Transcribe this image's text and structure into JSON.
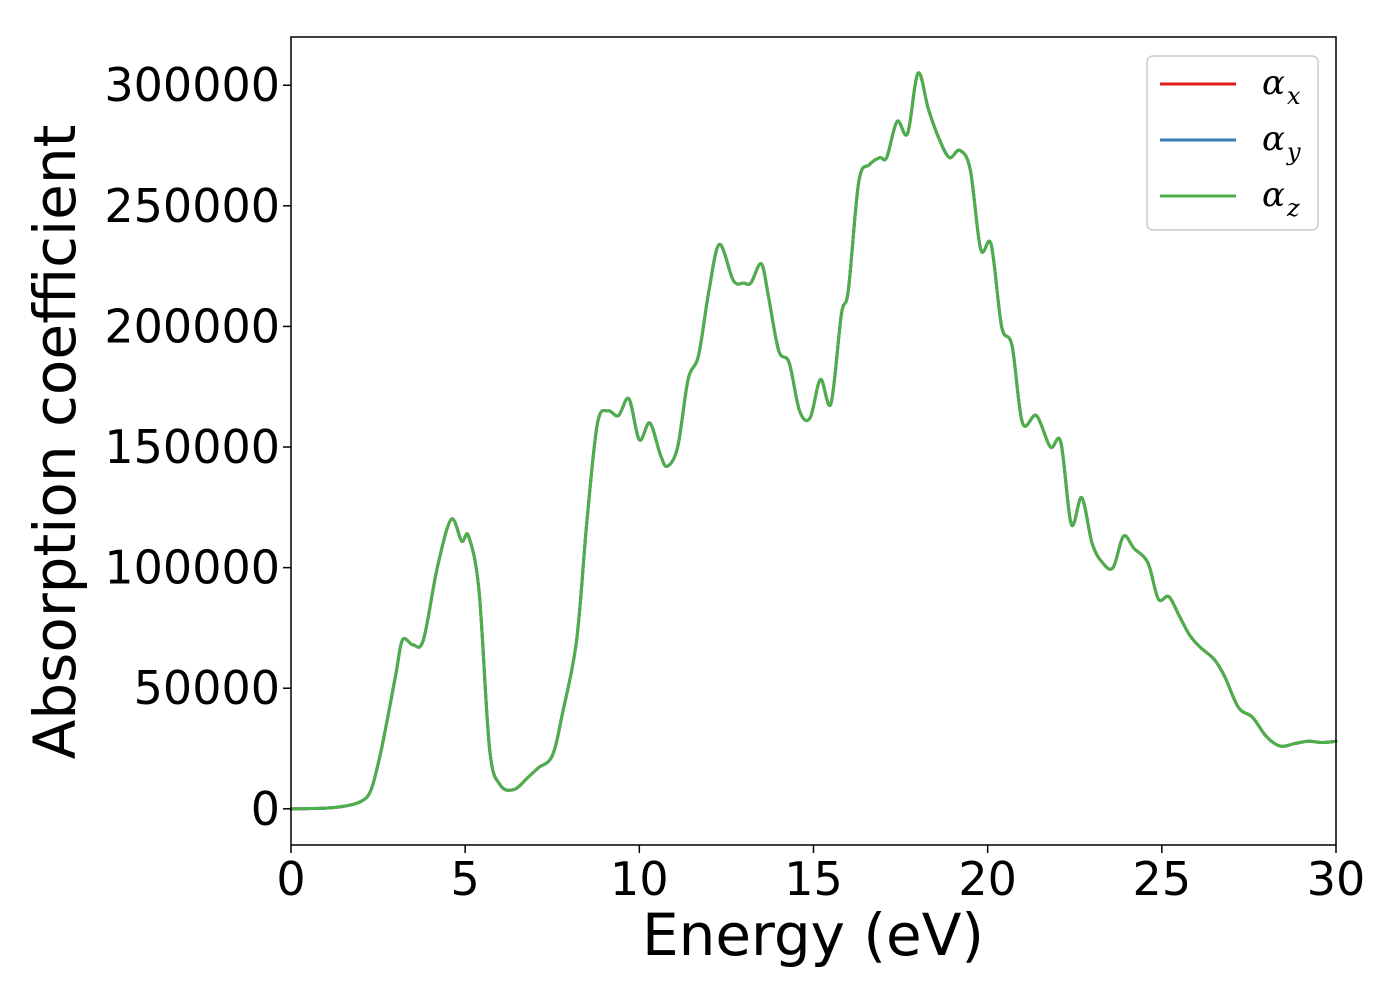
{
  "chart_data": {
    "type": "line",
    "title": "",
    "xlabel": "Energy (eV)",
    "ylabel": "Absorption coefficient",
    "xlim": [
      0,
      30
    ],
    "ylim": [
      -15000,
      320000
    ],
    "xticks": [
      0,
      5,
      10,
      15,
      20,
      25,
      30
    ],
    "yticks": [
      0,
      50000,
      100000,
      150000,
      200000,
      250000,
      300000
    ],
    "xtick_labels": [
      "0",
      "5",
      "10",
      "15",
      "20",
      "25",
      "30"
    ],
    "ytick_labels": [
      "0",
      "50000",
      "100000",
      "150000",
      "200000",
      "250000",
      "300000"
    ],
    "grid": false,
    "legend_position": "top-right",
    "x": [
      0,
      1,
      1.5,
      2,
      2.3,
      2.6,
      3.0,
      3.2,
      3.5,
      3.8,
      4.2,
      4.6,
      4.9,
      5.1,
      5.4,
      5.7,
      6.0,
      6.4,
      6.8,
      7.1,
      7.5,
      7.8,
      8.2,
      8.5,
      8.8,
      9.1,
      9.4,
      9.7,
      10.0,
      10.3,
      10.6,
      10.8,
      11.1,
      11.4,
      11.7,
      12.0,
      12.3,
      12.7,
      13.0,
      13.2,
      13.5,
      13.7,
      14.0,
      14.3,
      14.6,
      14.9,
      15.2,
      15.5,
      15.8,
      16.0,
      16.3,
      16.6,
      16.9,
      17.1,
      17.4,
      17.7,
      18.0,
      18.3,
      18.6,
      18.9,
      19.2,
      19.5,
      19.8,
      20.1,
      20.4,
      20.7,
      21.0,
      21.4,
      21.8,
      22.1,
      22.4,
      22.7,
      23.0,
      23.3,
      23.6,
      23.9,
      24.2,
      24.6,
      24.9,
      25.2,
      25.5,
      25.8,
      26.1,
      26.5,
      26.8,
      27.2,
      27.6,
      28.0,
      28.4,
      28.8,
      29.2,
      29.6,
      30.0
    ],
    "series": [
      {
        "name": "α_x",
        "legend_main": "α",
        "legend_sub": "x",
        "color": "#e41a1c",
        "values": [
          0,
          300,
          1000,
          3000,
          8000,
          25000,
          55000,
          70000,
          68000,
          70000,
          100000,
          120000,
          111000,
          113000,
          90000,
          25000,
          10000,
          8000,
          13000,
          17000,
          22000,
          40000,
          70000,
          120000,
          160000,
          165000,
          163000,
          170000,
          153000,
          160000,
          147000,
          142000,
          150000,
          178000,
          188000,
          215000,
          234000,
          219000,
          218000,
          218000,
          226000,
          213000,
          190000,
          185000,
          165000,
          162000,
          178000,
          168000,
          205000,
          215000,
          260000,
          267000,
          270000,
          270000,
          285000,
          280000,
          305000,
          290000,
          278000,
          270000,
          273000,
          265000,
          232000,
          234000,
          200000,
          192000,
          160000,
          163000,
          150000,
          152000,
          118000,
          129000,
          110000,
          102000,
          100000,
          113000,
          108000,
          102000,
          87000,
          88000,
          80000,
          72000,
          67000,
          62000,
          55000,
          42000,
          38000,
          30000,
          26000,
          27000,
          28000,
          27500,
          28000
        ]
      },
      {
        "name": "α_y",
        "legend_main": "α",
        "legend_sub": "y",
        "color": "#377eb8",
        "values": [
          0,
          300,
          1000,
          3000,
          8000,
          25000,
          55000,
          70000,
          68000,
          70000,
          100000,
          120000,
          111000,
          113000,
          90000,
          25000,
          10000,
          8000,
          13000,
          17000,
          22000,
          40000,
          70000,
          120000,
          160000,
          165000,
          163000,
          170000,
          153000,
          160000,
          147000,
          142000,
          150000,
          178000,
          188000,
          215000,
          234000,
          219000,
          218000,
          218000,
          226000,
          213000,
          190000,
          185000,
          165000,
          162000,
          178000,
          168000,
          205000,
          215000,
          260000,
          267000,
          270000,
          270000,
          285000,
          280000,
          305000,
          290000,
          278000,
          270000,
          273000,
          265000,
          232000,
          234000,
          200000,
          192000,
          160000,
          163000,
          150000,
          152000,
          118000,
          129000,
          110000,
          102000,
          100000,
          113000,
          108000,
          102000,
          87000,
          88000,
          80000,
          72000,
          67000,
          62000,
          55000,
          42000,
          38000,
          30000,
          26000,
          27000,
          28000,
          27500,
          28000
        ]
      },
      {
        "name": "α_z",
        "legend_main": "α",
        "legend_sub": "z",
        "color": "#4daf4a",
        "values": [
          0,
          300,
          1000,
          3000,
          8000,
          25000,
          55000,
          70000,
          68000,
          70000,
          100000,
          120000,
          111000,
          113000,
          90000,
          25000,
          10000,
          8000,
          13000,
          17000,
          22000,
          40000,
          70000,
          120000,
          160000,
          165000,
          163000,
          170000,
          153000,
          160000,
          147000,
          142000,
          150000,
          178000,
          188000,
          215000,
          234000,
          219000,
          218000,
          218000,
          226000,
          213000,
          190000,
          185000,
          165000,
          162000,
          178000,
          168000,
          205000,
          215000,
          260000,
          267000,
          270000,
          270000,
          285000,
          280000,
          305000,
          290000,
          278000,
          270000,
          273000,
          265000,
          232000,
          234000,
          200000,
          192000,
          160000,
          163000,
          150000,
          152000,
          118000,
          129000,
          110000,
          102000,
          100000,
          113000,
          108000,
          102000,
          87000,
          88000,
          80000,
          72000,
          67000,
          62000,
          55000,
          42000,
          38000,
          30000,
          26000,
          27000,
          28000,
          27500,
          28000
        ]
      }
    ]
  }
}
